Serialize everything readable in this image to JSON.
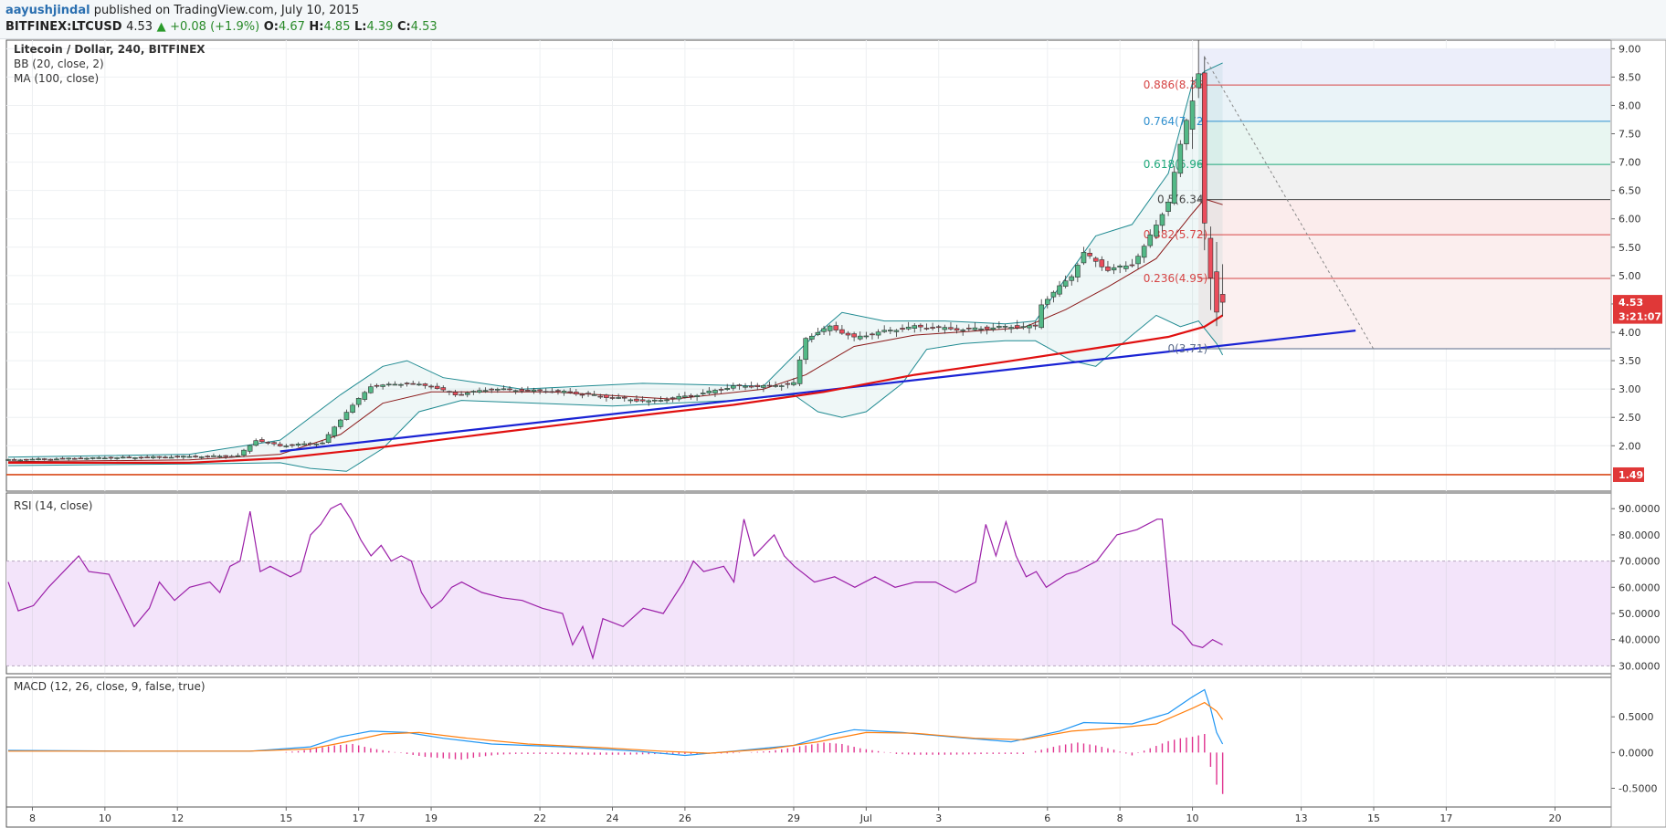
{
  "header": {
    "user": "aayushjindal",
    "published": "published on TradingView.com, July 10, 2015",
    "symbol": "BITFINEX:LTCUSD",
    "last": "4.53",
    "change": "+0.08 (+1.9%)",
    "ohlc": [
      {
        "key": "O:",
        "value": "4.67"
      },
      {
        "key": "H:",
        "value": "4.85"
      },
      {
        "key": "L:",
        "value": "4.39"
      },
      {
        "key": "C:",
        "value": "4.53"
      }
    ]
  },
  "colors": {
    "up": "#53b987",
    "down": "#eb4d5c",
    "bb": "#1f8a91",
    "ma": "#8b1a1a",
    "trendline": "#1a23d4",
    "ma100": "#e01010",
    "support": "#d94a1a",
    "rsi": "#9b1fa8",
    "rsi_band": "#f3e4fa",
    "macd": "#2196f3",
    "signal": "#ff7f0e",
    "hist": "#e0338f"
  },
  "chart_data": {
    "type": "candlestick",
    "legend": [
      "Litecoin / Dollar, 240, BITFINEX",
      "BB (20, close, 2)",
      "MA (100, close)"
    ],
    "price_axis": {
      "min": 1.2,
      "max": 9.15,
      "ticks": [
        "9.00",
        "8.50",
        "8.00",
        "7.50",
        "7.00",
        "6.50",
        "6.00",
        "5.50",
        "5.00",
        "4.50",
        "4.00",
        "3.50",
        "3.00",
        "2.50",
        "2.00"
      ]
    },
    "x_ticks": [
      {
        "label": "8",
        "i": 4
      },
      {
        "label": "10",
        "i": 16
      },
      {
        "label": "12",
        "i": 28
      },
      {
        "label": "15",
        "i": 46
      },
      {
        "label": "17",
        "i": 58
      },
      {
        "label": "19",
        "i": 70
      },
      {
        "label": "22",
        "i": 88
      },
      {
        "label": "24",
        "i": 100
      },
      {
        "label": "26",
        "i": 112
      },
      {
        "label": "29",
        "i": 130
      },
      {
        "label": "Jul",
        "i": 142
      },
      {
        "label": "3",
        "i": 154
      },
      {
        "label": "6",
        "i": 172
      },
      {
        "label": "8",
        "i": 184
      },
      {
        "label": "10",
        "i": 196
      },
      {
        "label": "13",
        "i": 214
      },
      {
        "label": "15",
        "i": 226
      },
      {
        "label": "17",
        "i": 238
      },
      {
        "label": "20",
        "i": 256
      }
    ],
    "last_index": 201,
    "max_index": 265,
    "close_path": [
      [
        0,
        1.75
      ],
      [
        12,
        1.78
      ],
      [
        24,
        1.8
      ],
      [
        38,
        1.82
      ],
      [
        41,
        2.1
      ],
      [
        45,
        2.0
      ],
      [
        52,
        2.05
      ],
      [
        56,
        2.6
      ],
      [
        60,
        3.05
      ],
      [
        66,
        3.1
      ],
      [
        70,
        3.05
      ],
      [
        74,
        2.9
      ],
      [
        80,
        3.0
      ],
      [
        92,
        2.95
      ],
      [
        100,
        2.85
      ],
      [
        106,
        2.78
      ],
      [
        114,
        2.9
      ],
      [
        120,
        3.05
      ],
      [
        126,
        3.05
      ],
      [
        130,
        3.1
      ],
      [
        132,
        3.9
      ],
      [
        136,
        4.1
      ],
      [
        140,
        3.9
      ],
      [
        144,
        4.0
      ],
      [
        150,
        4.1
      ],
      [
        158,
        4.05
      ],
      [
        166,
        4.1
      ],
      [
        170,
        4.1
      ],
      [
        171,
        4.5
      ],
      [
        176,
        5.0
      ],
      [
        178,
        5.4
      ],
      [
        182,
        5.1
      ],
      [
        186,
        5.2
      ],
      [
        188,
        5.5
      ],
      [
        190,
        5.9
      ],
      [
        192,
        6.3
      ],
      [
        194,
        7.3
      ],
      [
        196,
        8.2
      ],
      [
        197,
        8.55
      ],
      [
        198,
        5.8
      ],
      [
        199,
        4.9
      ],
      [
        200,
        4.45
      ],
      [
        201,
        4.53
      ]
    ],
    "fib_levels": [
      {
        "ratio": "0.886",
        "value": 8.36,
        "label": "0.886(8.36)",
        "color": "#d64545",
        "fill": "#f6eef4"
      },
      {
        "ratio": "0.764",
        "value": 7.72,
        "label": "0.764(7.72)",
        "color": "#2f8fce",
        "fill": "#eaf3f8"
      },
      {
        "ratio": "0.618",
        "value": 6.96,
        "label": "0.618(6.96)",
        "color": "#1fa87a",
        "fill": "#e8f6f1"
      },
      {
        "ratio": "0.5",
        "value": 6.34,
        "label": "0.5(6.34)",
        "color": "#444444",
        "fill": "#f1f1f1"
      },
      {
        "ratio": "0.382",
        "value": 5.72,
        "label": "0.382(5.72)",
        "color": "#d64545",
        "fill": "#fbecec"
      },
      {
        "ratio": "0.236",
        "value": 4.95,
        "label": "0.236(4.95)",
        "color": "#d64545",
        "fill": "#fbeeee"
      },
      {
        "ratio": "0",
        "value": 3.71,
        "label": "0(3.71)",
        "color": "#5a6a8a",
        "fill": ""
      }
    ],
    "fib_top": 9.0,
    "fib_start_index": 197,
    "support_level": {
      "value": 1.49,
      "label": "1.49"
    },
    "trendline": {
      "from": [
        45,
        1.9
      ],
      "to": [
        223,
        4.03
      ]
    },
    "dashed_line": {
      "from": [
        198,
        8.85
      ],
      "to": [
        226,
        3.7
      ]
    },
    "price_labels": [
      {
        "text": "4.53",
        "value": 4.53
      },
      {
        "text": "3:21:07",
        "value": 4.28
      }
    ],
    "ma100_path": [
      [
        0,
        1.7
      ],
      [
        30,
        1.7
      ],
      [
        45,
        1.78
      ],
      [
        60,
        1.95
      ],
      [
        80,
        2.22
      ],
      [
        100,
        2.48
      ],
      [
        120,
        2.72
      ],
      [
        135,
        2.95
      ],
      [
        150,
        3.25
      ],
      [
        165,
        3.48
      ],
      [
        180,
        3.72
      ],
      [
        192,
        3.92
      ],
      [
        198,
        4.1
      ],
      [
        201,
        4.3
      ]
    ],
    "ma20_path": [
      [
        0,
        1.72
      ],
      [
        30,
        1.75
      ],
      [
        45,
        1.85
      ],
      [
        55,
        2.2
      ],
      [
        62,
        2.75
      ],
      [
        70,
        2.95
      ],
      [
        90,
        2.95
      ],
      [
        110,
        2.82
      ],
      [
        125,
        3.0
      ],
      [
        132,
        3.25
      ],
      [
        140,
        3.75
      ],
      [
        150,
        3.95
      ],
      [
        168,
        4.08
      ],
      [
        175,
        4.4
      ],
      [
        182,
        4.8
      ],
      [
        190,
        5.3
      ],
      [
        196,
        6.1
      ],
      [
        198,
        6.35
      ],
      [
        201,
        6.25
      ]
    ],
    "bb_upper": [
      [
        0,
        1.8
      ],
      [
        30,
        1.85
      ],
      [
        45,
        2.1
      ],
      [
        55,
        2.9
      ],
      [
        62,
        3.4
      ],
      [
        66,
        3.5
      ],
      [
        72,
        3.2
      ],
      [
        85,
        3.0
      ],
      [
        105,
        3.1
      ],
      [
        125,
        3.05
      ],
      [
        132,
        3.8
      ],
      [
        138,
        4.35
      ],
      [
        145,
        4.2
      ],
      [
        155,
        4.2
      ],
      [
        165,
        4.15
      ],
      [
        170,
        4.2
      ],
      [
        176,
        5.1
      ],
      [
        180,
        5.7
      ],
      [
        186,
        5.9
      ],
      [
        192,
        6.8
      ],
      [
        196,
        8.4
      ],
      [
        198,
        8.6
      ],
      [
        201,
        8.75
      ]
    ],
    "bb_lower": [
      [
        0,
        1.65
      ],
      [
        30,
        1.68
      ],
      [
        45,
        1.7
      ],
      [
        50,
        1.6
      ],
      [
        56,
        1.55
      ],
      [
        62,
        1.95
      ],
      [
        68,
        2.6
      ],
      [
        75,
        2.8
      ],
      [
        100,
        2.7
      ],
      [
        120,
        2.8
      ],
      [
        130,
        2.9
      ],
      [
        134,
        2.6
      ],
      [
        138,
        2.5
      ],
      [
        142,
        2.6
      ],
      [
        148,
        3.1
      ],
      [
        152,
        3.7
      ],
      [
        158,
        3.8
      ],
      [
        165,
        3.85
      ],
      [
        170,
        3.85
      ],
      [
        176,
        3.5
      ],
      [
        180,
        3.4
      ],
      [
        186,
        3.95
      ],
      [
        190,
        4.3
      ],
      [
        194,
        4.1
      ],
      [
        197,
        4.2
      ],
      [
        200,
        3.8
      ],
      [
        201,
        3.6
      ]
    ],
    "rsi": {
      "label": "RSI (14, close)",
      "axis": {
        "min": 27,
        "max": 96,
        "ticks": [
          "90.0000",
          "80.0000",
          "70.0000",
          "60.0000",
          "50.0000",
          "40.0000",
          "30.0000"
        ]
      },
      "band": [
        30,
        70
      ],
      "path": [
        [
          0,
          62
        ],
        [
          2,
          51
        ],
        [
          5,
          53
        ],
        [
          8,
          60
        ],
        [
          12,
          68
        ],
        [
          14,
          72
        ],
        [
          16,
          66
        ],
        [
          20,
          65
        ],
        [
          22,
          57
        ],
        [
          25,
          45
        ],
        [
          28,
          52
        ],
        [
          30,
          62
        ],
        [
          33,
          55
        ],
        [
          36,
          60
        ],
        [
          40,
          62
        ],
        [
          42,
          58
        ],
        [
          44,
          68
        ],
        [
          46,
          70
        ],
        [
          48,
          89
        ],
        [
          50,
          66
        ],
        [
          52,
          68
        ],
        [
          56,
          64
        ],
        [
          58,
          66
        ],
        [
          60,
          80
        ],
        [
          62,
          84
        ],
        [
          64,
          90
        ],
        [
          66,
          92
        ],
        [
          68,
          86
        ],
        [
          70,
          78
        ],
        [
          72,
          72
        ],
        [
          74,
          76
        ],
        [
          76,
          70
        ],
        [
          78,
          72
        ],
        [
          80,
          70
        ],
        [
          82,
          58
        ],
        [
          84,
          52
        ],
        [
          86,
          55
        ],
        [
          88,
          60
        ],
        [
          90,
          62
        ],
        [
          94,
          58
        ],
        [
          98,
          56
        ],
        [
          102,
          55
        ],
        [
          106,
          52
        ],
        [
          110,
          50
        ],
        [
          112,
          38
        ],
        [
          114,
          45
        ],
        [
          116,
          33
        ],
        [
          118,
          48
        ],
        [
          122,
          45
        ],
        [
          126,
          52
        ],
        [
          130,
          50
        ],
        [
          134,
          62
        ],
        [
          136,
          70
        ],
        [
          138,
          66
        ],
        [
          142,
          68
        ],
        [
          144,
          62
        ],
        [
          146,
          86
        ],
        [
          148,
          72
        ],
        [
          152,
          80
        ],
        [
          154,
          72
        ],
        [
          156,
          68
        ],
        [
          160,
          62
        ],
        [
          164,
          64
        ],
        [
          168,
          60
        ],
        [
          172,
          64
        ],
        [
          176,
          60
        ],
        [
          180,
          62
        ],
        [
          184,
          62
        ],
        [
          188,
          58
        ],
        [
          190,
          60
        ],
        [
          192,
          62
        ],
        [
          194,
          84
        ],
        [
          196,
          72
        ],
        [
          198,
          85
        ],
        [
          200,
          72
        ],
        [
          202,
          64
        ],
        [
          204,
          66
        ],
        [
          206,
          60
        ],
        [
          210,
          65
        ],
        [
          212,
          66
        ],
        [
          216,
          70
        ],
        [
          218,
          75
        ],
        [
          220,
          80
        ],
        [
          224,
          82
        ],
        [
          228,
          86
        ],
        [
          229,
          86
        ],
        [
          231,
          46
        ],
        [
          233,
          43
        ],
        [
          235,
          38
        ],
        [
          237,
          37
        ],
        [
          239,
          40
        ],
        [
          241,
          38
        ]
      ]
    },
    "macd": {
      "label": "MACD (12, 26, close, 9, false, true)",
      "axis": {
        "min": -0.66,
        "max": 0.95,
        "ticks": [
          "0.5000",
          "0.0000",
          "-0.5000"
        ]
      },
      "macd_path": [
        [
          0,
          0.03
        ],
        [
          20,
          0.02
        ],
        [
          40,
          0.02
        ],
        [
          50,
          0.08
        ],
        [
          55,
          0.22
        ],
        [
          60,
          0.3
        ],
        [
          66,
          0.28
        ],
        [
          72,
          0.2
        ],
        [
          80,
          0.12
        ],
        [
          92,
          0.08
        ],
        [
          104,
          0.02
        ],
        [
          112,
          -0.04
        ],
        [
          120,
          0.02
        ],
        [
          130,
          0.1
        ],
        [
          136,
          0.25
        ],
        [
          140,
          0.32
        ],
        [
          148,
          0.28
        ],
        [
          156,
          0.22
        ],
        [
          166,
          0.15
        ],
        [
          174,
          0.3
        ],
        [
          178,
          0.42
        ],
        [
          186,
          0.4
        ],
        [
          192,
          0.55
        ],
        [
          196,
          0.78
        ],
        [
          198,
          0.88
        ],
        [
          199,
          0.62
        ],
        [
          200,
          0.28
        ],
        [
          201,
          0.12
        ]
      ],
      "signal_path": [
        [
          0,
          0.02
        ],
        [
          20,
          0.02
        ],
        [
          40,
          0.02
        ],
        [
          50,
          0.05
        ],
        [
          56,
          0.15
        ],
        [
          62,
          0.26
        ],
        [
          68,
          0.28
        ],
        [
          76,
          0.2
        ],
        [
          86,
          0.12
        ],
        [
          98,
          0.07
        ],
        [
          108,
          0.02
        ],
        [
          116,
          -0.01
        ],
        [
          126,
          0.05
        ],
        [
          134,
          0.15
        ],
        [
          142,
          0.28
        ],
        [
          150,
          0.27
        ],
        [
          160,
          0.2
        ],
        [
          168,
          0.18
        ],
        [
          176,
          0.3
        ],
        [
          184,
          0.35
        ],
        [
          190,
          0.4
        ],
        [
          196,
          0.62
        ],
        [
          198,
          0.7
        ],
        [
          200,
          0.58
        ],
        [
          201,
          0.46
        ]
      ],
      "histogram": [
        [
          45,
          0.0
        ],
        [
          48,
          0.02
        ],
        [
          51,
          0.06
        ],
        [
          54,
          0.1
        ],
        [
          57,
          0.12
        ],
        [
          60,
          0.06
        ],
        [
          63,
          0.02
        ],
        [
          66,
          -0.02
        ],
        [
          69,
          -0.06
        ],
        [
          72,
          -0.08
        ],
        [
          75,
          -0.1
        ],
        [
          78,
          -0.06
        ],
        [
          81,
          -0.03
        ],
        [
          84,
          -0.02
        ],
        [
          90,
          -0.02
        ],
        [
          96,
          -0.03
        ],
        [
          102,
          -0.03
        ],
        [
          108,
          -0.02
        ],
        [
          114,
          -0.02
        ],
        [
          120,
          -0.01
        ],
        [
          126,
          0.02
        ],
        [
          129,
          0.06
        ],
        [
          132,
          0.1
        ],
        [
          135,
          0.14
        ],
        [
          138,
          0.12
        ],
        [
          141,
          0.06
        ],
        [
          144,
          0.02
        ],
        [
          147,
          -0.02
        ],
        [
          150,
          -0.03
        ],
        [
          156,
          -0.03
        ],
        [
          162,
          -0.02
        ],
        [
          168,
          -0.02
        ],
        [
          171,
          0.04
        ],
        [
          174,
          0.1
        ],
        [
          177,
          0.14
        ],
        [
          180,
          0.1
        ],
        [
          183,
          0.04
        ],
        [
          186,
          -0.04
        ],
        [
          189,
          0.06
        ],
        [
          192,
          0.16
        ],
        [
          194,
          0.2
        ],
        [
          196,
          0.22
        ],
        [
          198,
          0.26
        ],
        [
          199,
          -0.2
        ],
        [
          200,
          -0.45
        ],
        [
          201,
          -0.58
        ]
      ]
    }
  }
}
